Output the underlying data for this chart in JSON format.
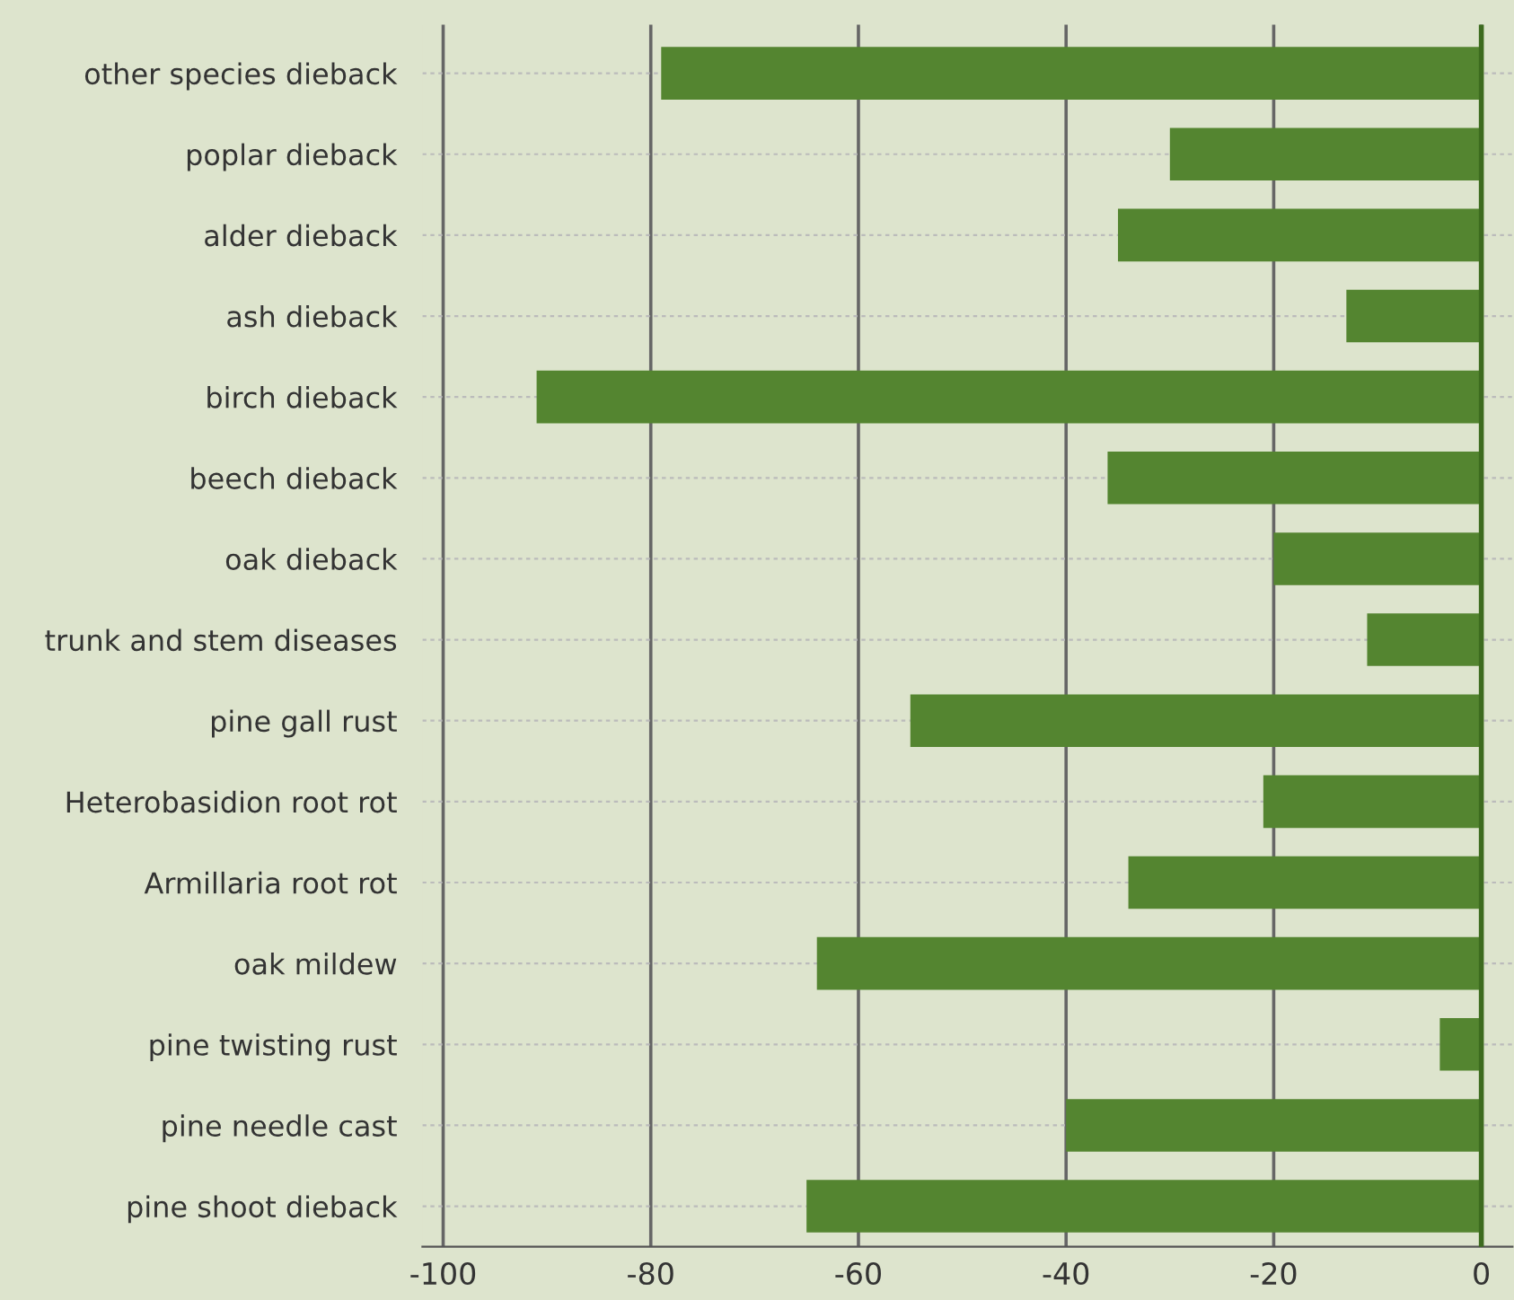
{
  "chart_data": {
    "type": "bar",
    "orientation": "horizontal",
    "categories": [
      "other species dieback",
      "poplar dieback",
      "alder dieback",
      "ash dieback",
      "birch dieback",
      "beech dieback",
      "oak dieback",
      "trunk and stem diseases",
      "pine gall rust",
      "Heterobasidion root rot",
      "Armillaria root rot",
      "oak mildew",
      "pine twisting rust",
      "pine needle cast",
      "pine shoot dieback"
    ],
    "values": [
      -79,
      -30,
      -35,
      -13,
      -91,
      -36,
      -20,
      -11,
      -55,
      -21,
      -34,
      -64,
      -4,
      -40,
      -65
    ],
    "color": "#548530",
    "xlim": [
      -102,
      3
    ],
    "xticks": [
      -100,
      -80,
      -60,
      -40,
      -20,
      0
    ],
    "ref_lines": [
      {
        "axis": "x",
        "value": 0,
        "color": "#3d6b1f"
      }
    ],
    "grid": true,
    "legend": false
  }
}
